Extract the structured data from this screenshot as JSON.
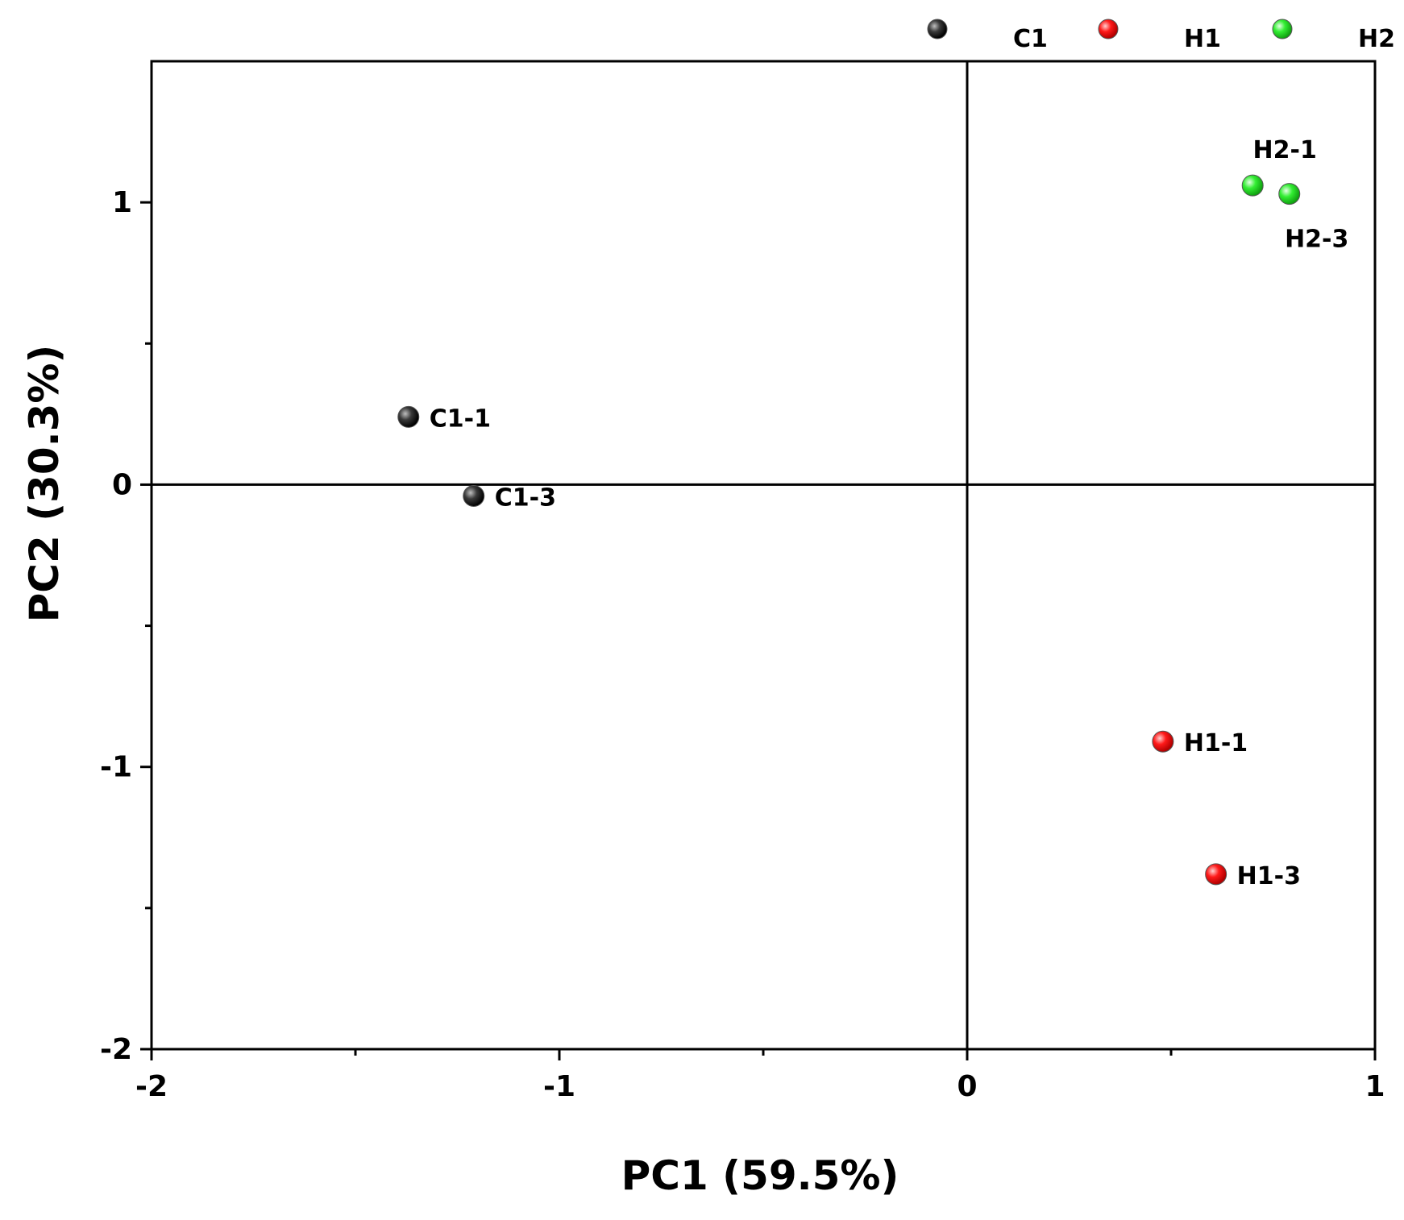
{
  "chart_data": {
    "type": "scatter",
    "xlabel": "PC1 (59.5%)",
    "ylabel": "PC2 (30.3%)",
    "xlim": [
      -2,
      1
    ],
    "ylim": [
      -2,
      1.5
    ],
    "xticks": [
      -2,
      -1,
      0,
      1
    ],
    "yticks": [
      -2,
      -1,
      0,
      1
    ],
    "reference_lines": {
      "x": 0,
      "y": 0
    },
    "grid": false,
    "legend_position": "top-right, above plot",
    "series": [
      {
        "name": "C1",
        "color": "#1a1a1a",
        "points": [
          {
            "label": "C1-1",
            "x": -1.37,
            "y": 0.24
          },
          {
            "label": "C1-3",
            "x": -1.21,
            "y": -0.04
          }
        ]
      },
      {
        "name": "H1",
        "color": "#ff1010",
        "points": [
          {
            "label": "H1-1",
            "x": 0.48,
            "y": -0.91
          },
          {
            "label": "H1-3",
            "x": 0.61,
            "y": -1.38
          }
        ]
      },
      {
        "name": "H2",
        "color": "#22ee22",
        "points": [
          {
            "label": "H2-1",
            "x": 0.7,
            "y": 1.06
          },
          {
            "label": "H2-3",
            "x": 0.79,
            "y": 1.03
          }
        ]
      }
    ]
  }
}
